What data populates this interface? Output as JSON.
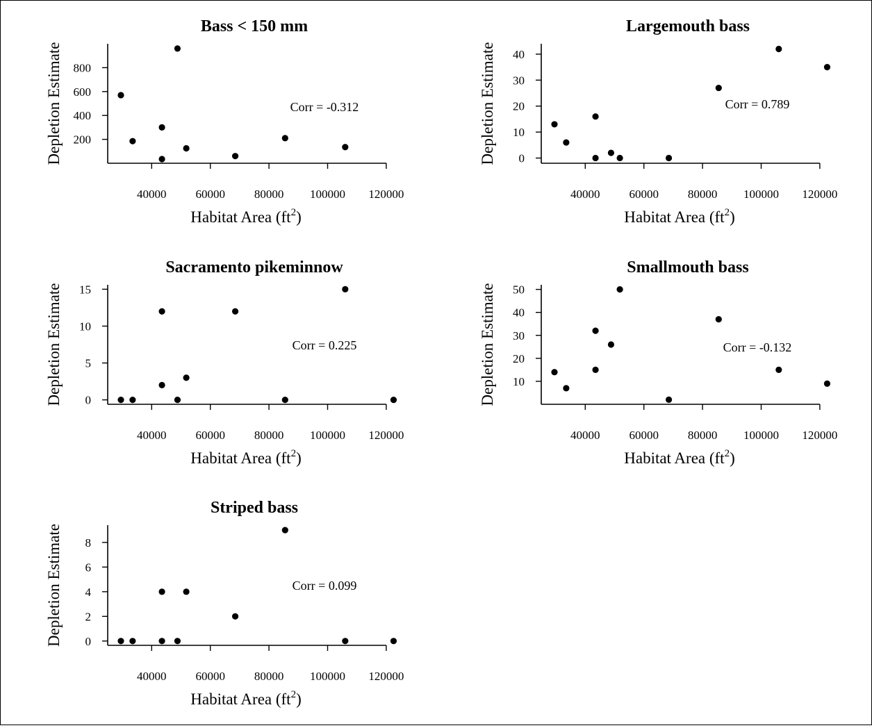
{
  "chart_data": [
    {
      "type": "scatter",
      "title": "Bass < 150 mm",
      "xlabel": "Habitat Area (ft",
      "xlabel_sup": "2",
      "xlabel_suffix": ")",
      "ylabel": "Depletion Estimate",
      "annotation": "Corr = -0.312",
      "xlim": [
        25000,
        125000
      ],
      "ylim": [
        0,
        1000
      ],
      "xticks": [
        40000,
        60000,
        80000,
        100000,
        120000
      ],
      "yticks": [
        200,
        400,
        600,
        800
      ],
      "points": [
        {
          "x": 29500,
          "y": 570
        },
        {
          "x": 33500,
          "y": 185
        },
        {
          "x": 43500,
          "y": 300
        },
        {
          "x": 43500,
          "y": 35
        },
        {
          "x": 48800,
          "y": 960
        },
        {
          "x": 51800,
          "y": 125
        },
        {
          "x": 68500,
          "y": 60
        },
        {
          "x": 85500,
          "y": 210
        },
        {
          "x": 106000,
          "y": 135
        }
      ]
    },
    {
      "type": "scatter",
      "title": "Largemouth bass",
      "xlabel": "Habitat Area (ft",
      "xlabel_sup": "2",
      "xlabel_suffix": ")",
      "ylabel": "Depletion Estimate",
      "annotation": "Corr = 0.789",
      "xlim": [
        25000,
        125000
      ],
      "ylim": [
        -2,
        44
      ],
      "xticks": [
        40000,
        60000,
        80000,
        100000,
        120000
      ],
      "yticks": [
        0,
        10,
        20,
        30,
        40
      ],
      "points": [
        {
          "x": 29500,
          "y": 13
        },
        {
          "x": 33500,
          "y": 6
        },
        {
          "x": 43500,
          "y": 16
        },
        {
          "x": 43500,
          "y": 0
        },
        {
          "x": 48800,
          "y": 2
        },
        {
          "x": 51800,
          "y": 0
        },
        {
          "x": 68500,
          "y": 0
        },
        {
          "x": 85500,
          "y": 27
        },
        {
          "x": 106000,
          "y": 42
        },
        {
          "x": 122500,
          "y": 35
        }
      ]
    },
    {
      "type": "scatter",
      "title": "Sacramento pikeminnow",
      "xlabel": "Habitat Area (ft",
      "xlabel_sup": "2",
      "xlabel_suffix": ")",
      "ylabel": "Depletion Estimate",
      "annotation": "Corr = 0.225",
      "xlim": [
        25000,
        125000
      ],
      "ylim": [
        -0.6,
        15.6
      ],
      "xticks": [
        40000,
        60000,
        80000,
        100000,
        120000
      ],
      "yticks": [
        0,
        5,
        10,
        15
      ],
      "points": [
        {
          "x": 29500,
          "y": 0
        },
        {
          "x": 33500,
          "y": 0
        },
        {
          "x": 43500,
          "y": 12
        },
        {
          "x": 43500,
          "y": 2
        },
        {
          "x": 48800,
          "y": 0
        },
        {
          "x": 51800,
          "y": 3
        },
        {
          "x": 68500,
          "y": 12
        },
        {
          "x": 85500,
          "y": 0
        },
        {
          "x": 106000,
          "y": 15
        },
        {
          "x": 122500,
          "y": 0
        }
      ]
    },
    {
      "type": "scatter",
      "title": "Smallmouth bass",
      "xlabel": "Habitat Area (ft",
      "xlabel_sup": "2",
      "xlabel_suffix": ")",
      "ylabel": "Depletion Estimate",
      "annotation": "Corr = -0.132",
      "xlim": [
        25000,
        125000
      ],
      "ylim": [
        0,
        52
      ],
      "xticks": [
        40000,
        60000,
        80000,
        100000,
        120000
      ],
      "yticks": [
        10,
        20,
        30,
        40,
        50
      ],
      "points": [
        {
          "x": 29500,
          "y": 14
        },
        {
          "x": 33500,
          "y": 7
        },
        {
          "x": 43500,
          "y": 32
        },
        {
          "x": 43500,
          "y": 15
        },
        {
          "x": 48800,
          "y": 26
        },
        {
          "x": 51800,
          "y": 50
        },
        {
          "x": 68500,
          "y": 2
        },
        {
          "x": 85500,
          "y": 37
        },
        {
          "x": 106000,
          "y": 15
        },
        {
          "x": 122500,
          "y": 9
        }
      ]
    },
    {
      "type": "scatter",
      "title": "Striped bass",
      "xlabel": "Habitat Area (ft",
      "xlabel_sup": "2",
      "xlabel_suffix": ")",
      "ylabel": "Depletion Estimate",
      "annotation": "Corr = 0.099",
      "xlim": [
        25000,
        125000
      ],
      "ylim": [
        -0.35,
        9.4
      ],
      "xticks": [
        40000,
        60000,
        80000,
        100000,
        120000
      ],
      "yticks": [
        0,
        2,
        4,
        6,
        8
      ],
      "points": [
        {
          "x": 29500,
          "y": 0
        },
        {
          "x": 33500,
          "y": 0
        },
        {
          "x": 43500,
          "y": 4
        },
        {
          "x": 43500,
          "y": 0
        },
        {
          "x": 48800,
          "y": 0
        },
        {
          "x": 51800,
          "y": 4
        },
        {
          "x": 68500,
          "y": 2
        },
        {
          "x": 85500,
          "y": 9
        },
        {
          "x": 106000,
          "y": 0
        },
        {
          "x": 122500,
          "y": 0
        }
      ]
    }
  ]
}
